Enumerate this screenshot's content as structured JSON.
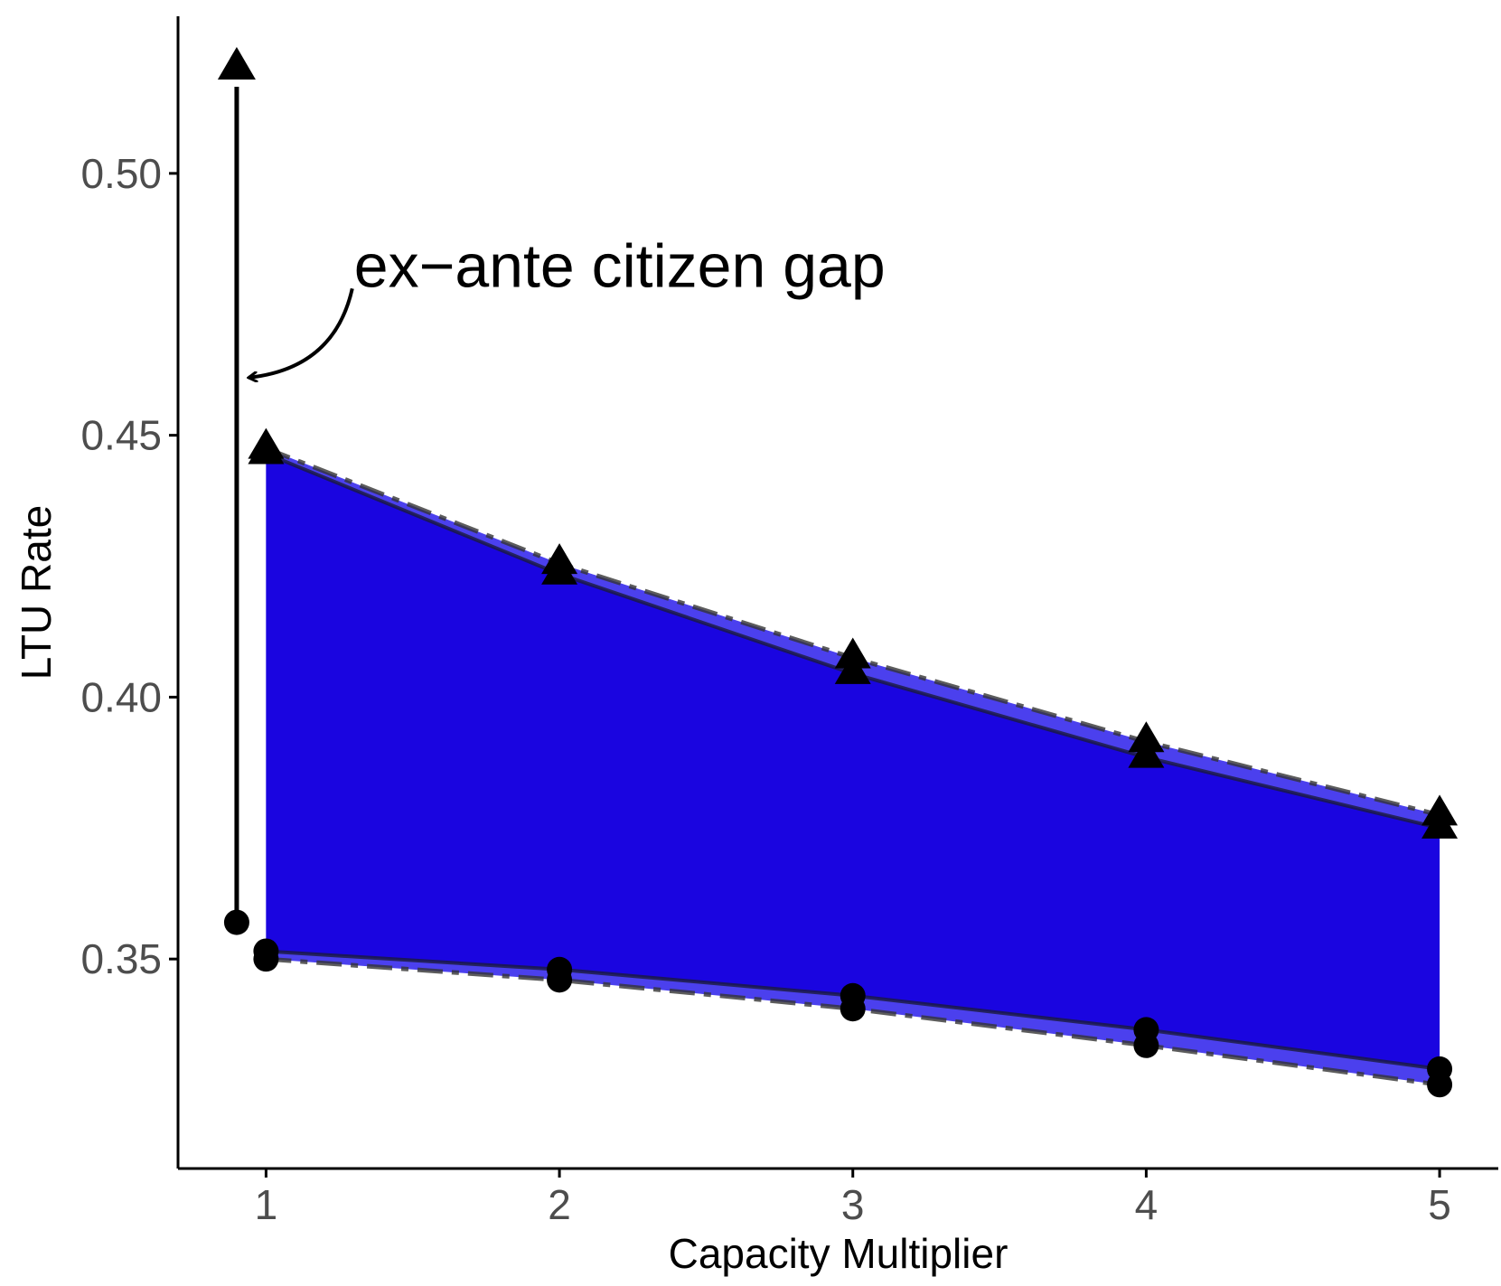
{
  "chart_data": {
    "type": "line",
    "title": "",
    "xlabel": "Capacity Multiplier",
    "ylabel": "LTU Rate",
    "xlim": [
      0.7,
      5.2
    ],
    "ylim": [
      0.31,
      0.53
    ],
    "x_ticks": [
      1,
      2,
      3,
      4,
      5
    ],
    "x_tick_labels": [
      "1",
      "2",
      "3",
      "4",
      "5"
    ],
    "y_ticks": [
      0.35,
      0.4,
      0.45,
      0.5
    ],
    "y_tick_labels": [
      "0.35",
      "0.40",
      "0.45",
      "0.50"
    ],
    "grid": false,
    "legend": "none",
    "band_color": "#1a05e0",
    "band_light_color": "#4b40ee",
    "x": [
      1,
      2,
      3,
      4,
      5
    ],
    "series": [
      {
        "marker": "triangle",
        "line": "solid",
        "values": [
          0.4465,
          0.4235,
          0.4045,
          0.3885,
          0.375
        ]
      },
      {
        "marker": "triangle",
        "line": "dashed",
        "values": [
          0.4475,
          0.4255,
          0.4075,
          0.3915,
          0.3775
        ]
      },
      {
        "marker": "circle",
        "line": "solid",
        "values": [
          0.3515,
          0.348,
          0.343,
          0.3365,
          0.329
        ]
      },
      {
        "marker": "circle",
        "line": "dashed",
        "values": [
          0.35,
          0.346,
          0.3405,
          0.3335,
          0.326
        ]
      }
    ],
    "gap_arrow": {
      "x": 0.9,
      "y_start": 0.357,
      "y_end": 0.52
    },
    "annotation": {
      "text": "ex−ante citizen gap",
      "x": 1.3,
      "y": 0.4825,
      "arrow_to": [
        0.94,
        0.461
      ]
    }
  }
}
